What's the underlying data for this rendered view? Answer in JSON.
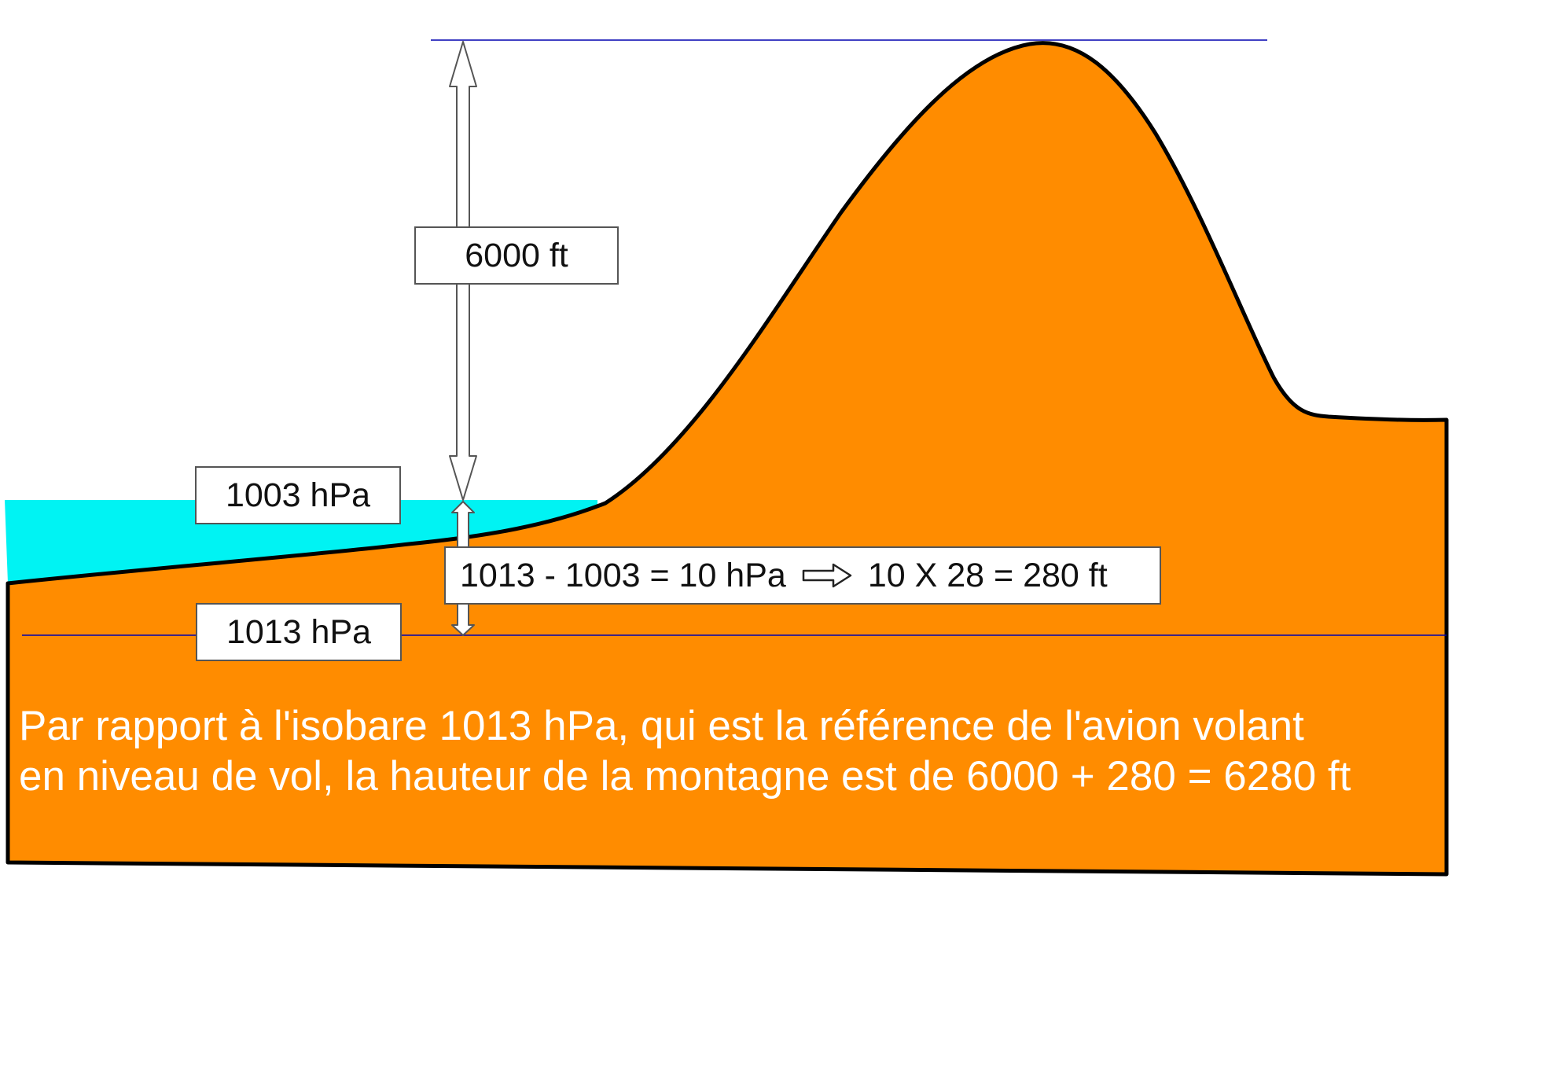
{
  "colors": {
    "mountain_fill": "#FF8C00",
    "air_mass": "#00F3F3",
    "isobar_line": "#0000B0",
    "outline": "#000000",
    "explanation_text": "#FFFFFF"
  },
  "labels": {
    "height_6000": "6000 ft",
    "isobar_1003": "1003 hPa",
    "isobar_1013": "1013 hPa",
    "calc_left": "1013 - 1003 = 10 hPa",
    "calc_right": "10 X 28 = 280 ft"
  },
  "explanation": {
    "line1": "Par rapport à l'isobare 1013 hPa, qui est la référence de l'avion volant",
    "line2": "en niveau de vol, la hauteur de la montagne est de 6000 + 280 = 6280 ft"
  }
}
